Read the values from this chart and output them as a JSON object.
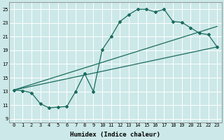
{
  "title": "",
  "xlabel": "Humidex (Indice chaleur)",
  "ylabel": "",
  "bg_color": "#cce8e8",
  "grid_color": "#ffffff",
  "line_color": "#1a6b5e",
  "xlim": [
    -0.5,
    23.5
  ],
  "ylim": [
    8.5,
    26.0
  ],
  "xticks": [
    0,
    1,
    2,
    3,
    4,
    5,
    6,
    7,
    8,
    9,
    10,
    11,
    12,
    13,
    14,
    15,
    16,
    17,
    18,
    19,
    20,
    21,
    22,
    23
  ],
  "yticks": [
    9,
    11,
    13,
    15,
    17,
    19,
    21,
    23,
    25
  ],
  "line1_x": [
    0,
    1,
    2,
    3,
    4,
    5,
    6,
    7,
    8,
    9,
    10,
    11,
    12,
    13,
    14,
    15,
    16,
    17,
    18,
    19,
    20,
    21,
    22,
    23
  ],
  "line1_y": [
    13.2,
    13.1,
    12.8,
    11.2,
    10.6,
    10.7,
    10.8,
    13.0,
    15.6,
    13.0,
    19.1,
    21.0,
    23.2,
    24.2,
    25.0,
    25.0,
    24.6,
    25.0,
    23.2,
    23.1,
    22.3,
    21.5,
    21.3,
    19.5
  ],
  "line2_x": [
    0,
    23
  ],
  "line2_y": [
    13.2,
    19.5
  ],
  "line3_x": [
    0,
    23
  ],
  "line3_y": [
    13.2,
    22.5
  ],
  "xlabel_fontsize": 6.5,
  "tick_fontsize": 5.0
}
